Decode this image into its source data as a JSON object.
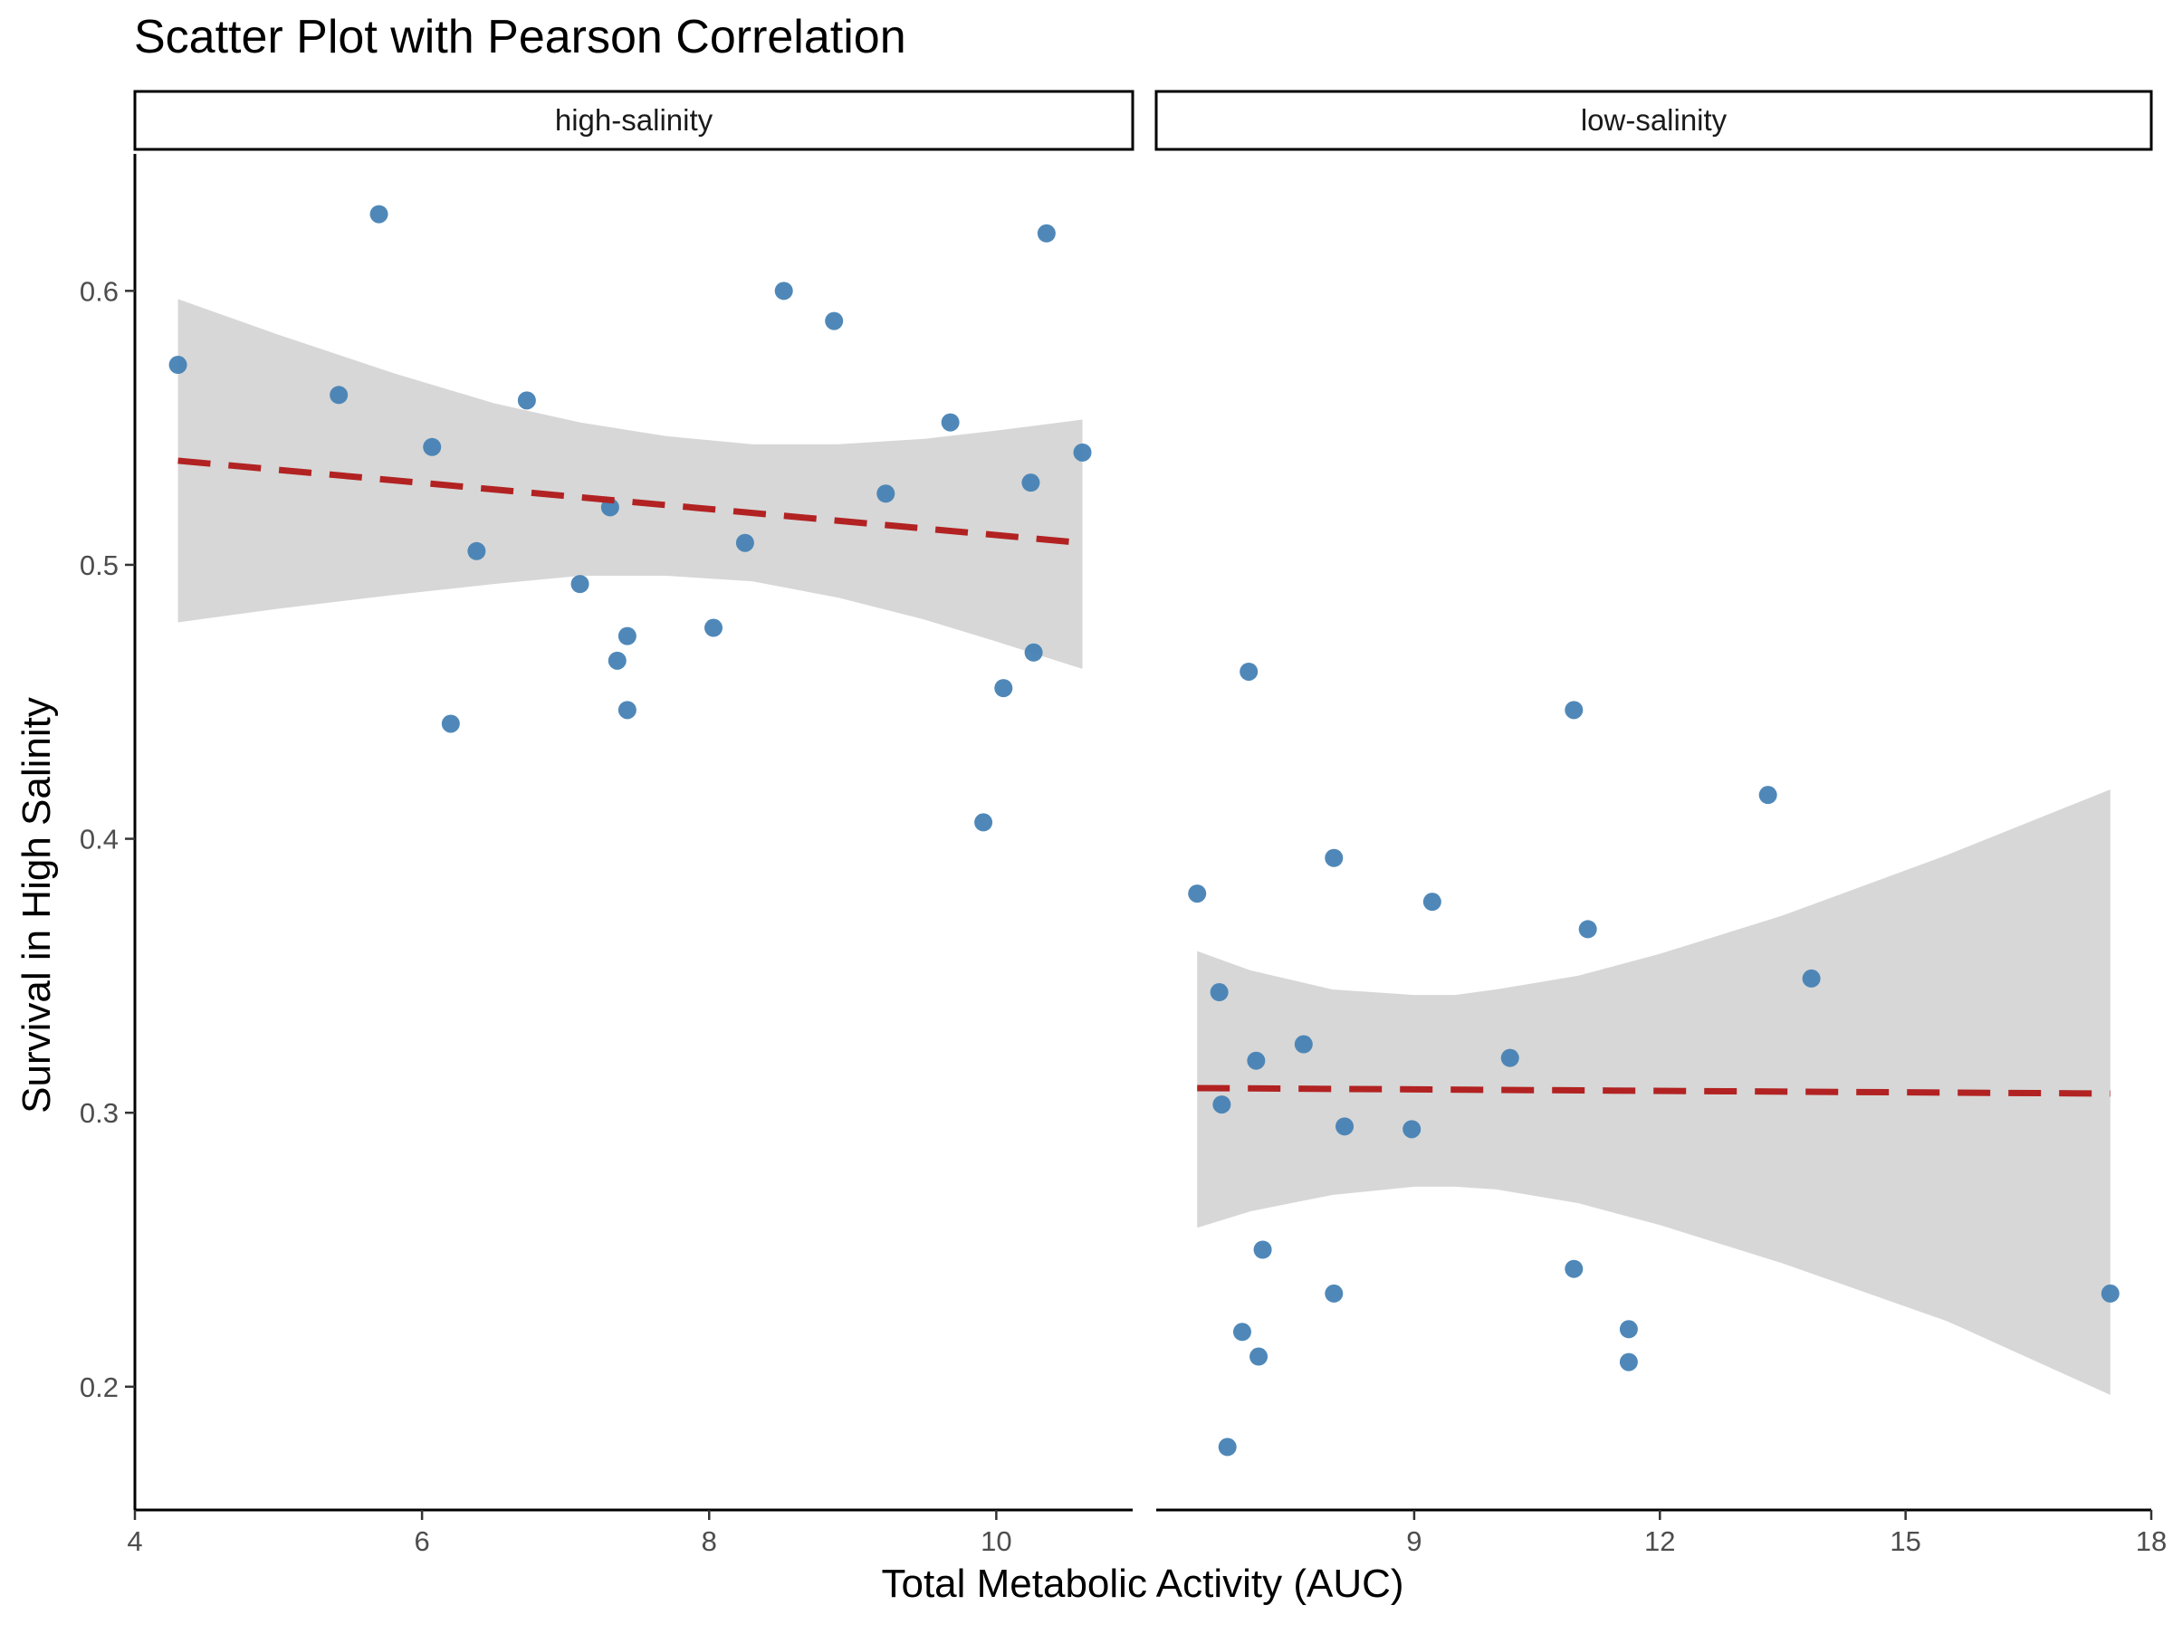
{
  "chart_data": {
    "type": "scatter",
    "title": "Scatter Plot with Pearson Correlation",
    "xlabel": "Total Metabolic Activity (AUC)",
    "ylabel": "Survival in High Salinity",
    "ylim": [
      0.155,
      0.65
    ],
    "yticks": [
      0.2,
      0.3,
      0.4,
      0.5,
      0.6
    ],
    "ytick_labels": [
      "0.2",
      "0.3",
      "0.4",
      "0.5",
      "0.6"
    ],
    "grid": false,
    "colors": {
      "point": "#4682b4",
      "fit_line": "#b22222",
      "ci_band": "#d3d3d3"
    },
    "panels": [
      {
        "label": "high-salinity",
        "xlim": [
          4.0,
          10.95
        ],
        "xticks": [
          4,
          6,
          8,
          10
        ],
        "xtick_labels": [
          "4",
          "6",
          "8",
          "10"
        ],
        "points": [
          {
            "x": 4.3,
            "y": 0.573
          },
          {
            "x": 5.7,
            "y": 0.628
          },
          {
            "x": 5.42,
            "y": 0.562
          },
          {
            "x": 6.07,
            "y": 0.543
          },
          {
            "x": 6.2,
            "y": 0.442
          },
          {
            "x": 6.38,
            "y": 0.505
          },
          {
            "x": 6.73,
            "y": 0.56
          },
          {
            "x": 7.1,
            "y": 0.493
          },
          {
            "x": 7.31,
            "y": 0.521
          },
          {
            "x": 7.36,
            "y": 0.465
          },
          {
            "x": 7.43,
            "y": 0.474
          },
          {
            "x": 7.43,
            "y": 0.447
          },
          {
            "x": 8.03,
            "y": 0.477
          },
          {
            "x": 8.25,
            "y": 0.508
          },
          {
            "x": 8.52,
            "y": 0.6
          },
          {
            "x": 8.87,
            "y": 0.589
          },
          {
            "x": 9.23,
            "y": 0.526
          },
          {
            "x": 9.68,
            "y": 0.552
          },
          {
            "x": 9.91,
            "y": 0.406
          },
          {
            "x": 10.05,
            "y": 0.455
          },
          {
            "x": 10.24,
            "y": 0.53
          },
          {
            "x": 10.26,
            "y": 0.468
          },
          {
            "x": 10.35,
            "y": 0.621
          },
          {
            "x": 10.6,
            "y": 0.541
          }
        ],
        "fit": {
          "x": [
            4.3,
            10.6
          ],
          "y": [
            0.538,
            0.508
          ]
        },
        "ci": {
          "x": [
            4.3,
            5.0,
            5.8,
            6.5,
            7.1,
            7.7,
            8.3,
            8.9,
            9.5,
            10.0,
            10.6
          ],
          "lower": [
            0.479,
            0.484,
            0.489,
            0.493,
            0.496,
            0.496,
            0.494,
            0.488,
            0.48,
            0.472,
            0.462
          ],
          "upper": [
            0.597,
            0.584,
            0.57,
            0.559,
            0.552,
            0.547,
            0.544,
            0.544,
            0.546,
            0.549,
            0.553
          ]
        }
      },
      {
        "label": "low-salinity",
        "xlim": [
          5.85,
          18.0
        ],
        "xticks": [
          9,
          12,
          15,
          18
        ],
        "xtick_labels": [
          "9",
          "12",
          "15",
          "18"
        ],
        "points": [
          {
            "x": 6.35,
            "y": 0.38
          },
          {
            "x": 6.62,
            "y": 0.344
          },
          {
            "x": 6.65,
            "y": 0.303
          },
          {
            "x": 6.72,
            "y": 0.178
          },
          {
            "x": 6.9,
            "y": 0.22
          },
          {
            "x": 6.98,
            "y": 0.461
          },
          {
            "x": 7.07,
            "y": 0.319
          },
          {
            "x": 7.1,
            "y": 0.211
          },
          {
            "x": 7.15,
            "y": 0.25
          },
          {
            "x": 7.65,
            "y": 0.325
          },
          {
            "x": 8.02,
            "y": 0.234
          },
          {
            "x": 8.02,
            "y": 0.393
          },
          {
            "x": 8.15,
            "y": 0.295
          },
          {
            "x": 8.97,
            "y": 0.294
          },
          {
            "x": 9.22,
            "y": 0.377
          },
          {
            "x": 10.17,
            "y": 0.32
          },
          {
            "x": 10.95,
            "y": 0.447
          },
          {
            "x": 10.95,
            "y": 0.243
          },
          {
            "x": 11.12,
            "y": 0.367
          },
          {
            "x": 11.62,
            "y": 0.221
          },
          {
            "x": 11.62,
            "y": 0.209
          },
          {
            "x": 13.32,
            "y": 0.416
          },
          {
            "x": 13.85,
            "y": 0.349
          },
          {
            "x": 17.5,
            "y": 0.234
          }
        ],
        "fit": {
          "x": [
            6.35,
            17.5
          ],
          "y": [
            0.309,
            0.307
          ]
        },
        "ci": {
          "x": [
            6.35,
            7.0,
            8.0,
            9.0,
            9.5,
            10.0,
            11.0,
            12.0,
            13.5,
            15.5,
            17.5
          ],
          "lower": [
            0.258,
            0.264,
            0.27,
            0.273,
            0.273,
            0.272,
            0.267,
            0.259,
            0.245,
            0.224,
            0.197
          ],
          "upper": [
            0.359,
            0.352,
            0.345,
            0.343,
            0.343,
            0.345,
            0.35,
            0.358,
            0.372,
            0.394,
            0.418
          ]
        }
      }
    ]
  }
}
